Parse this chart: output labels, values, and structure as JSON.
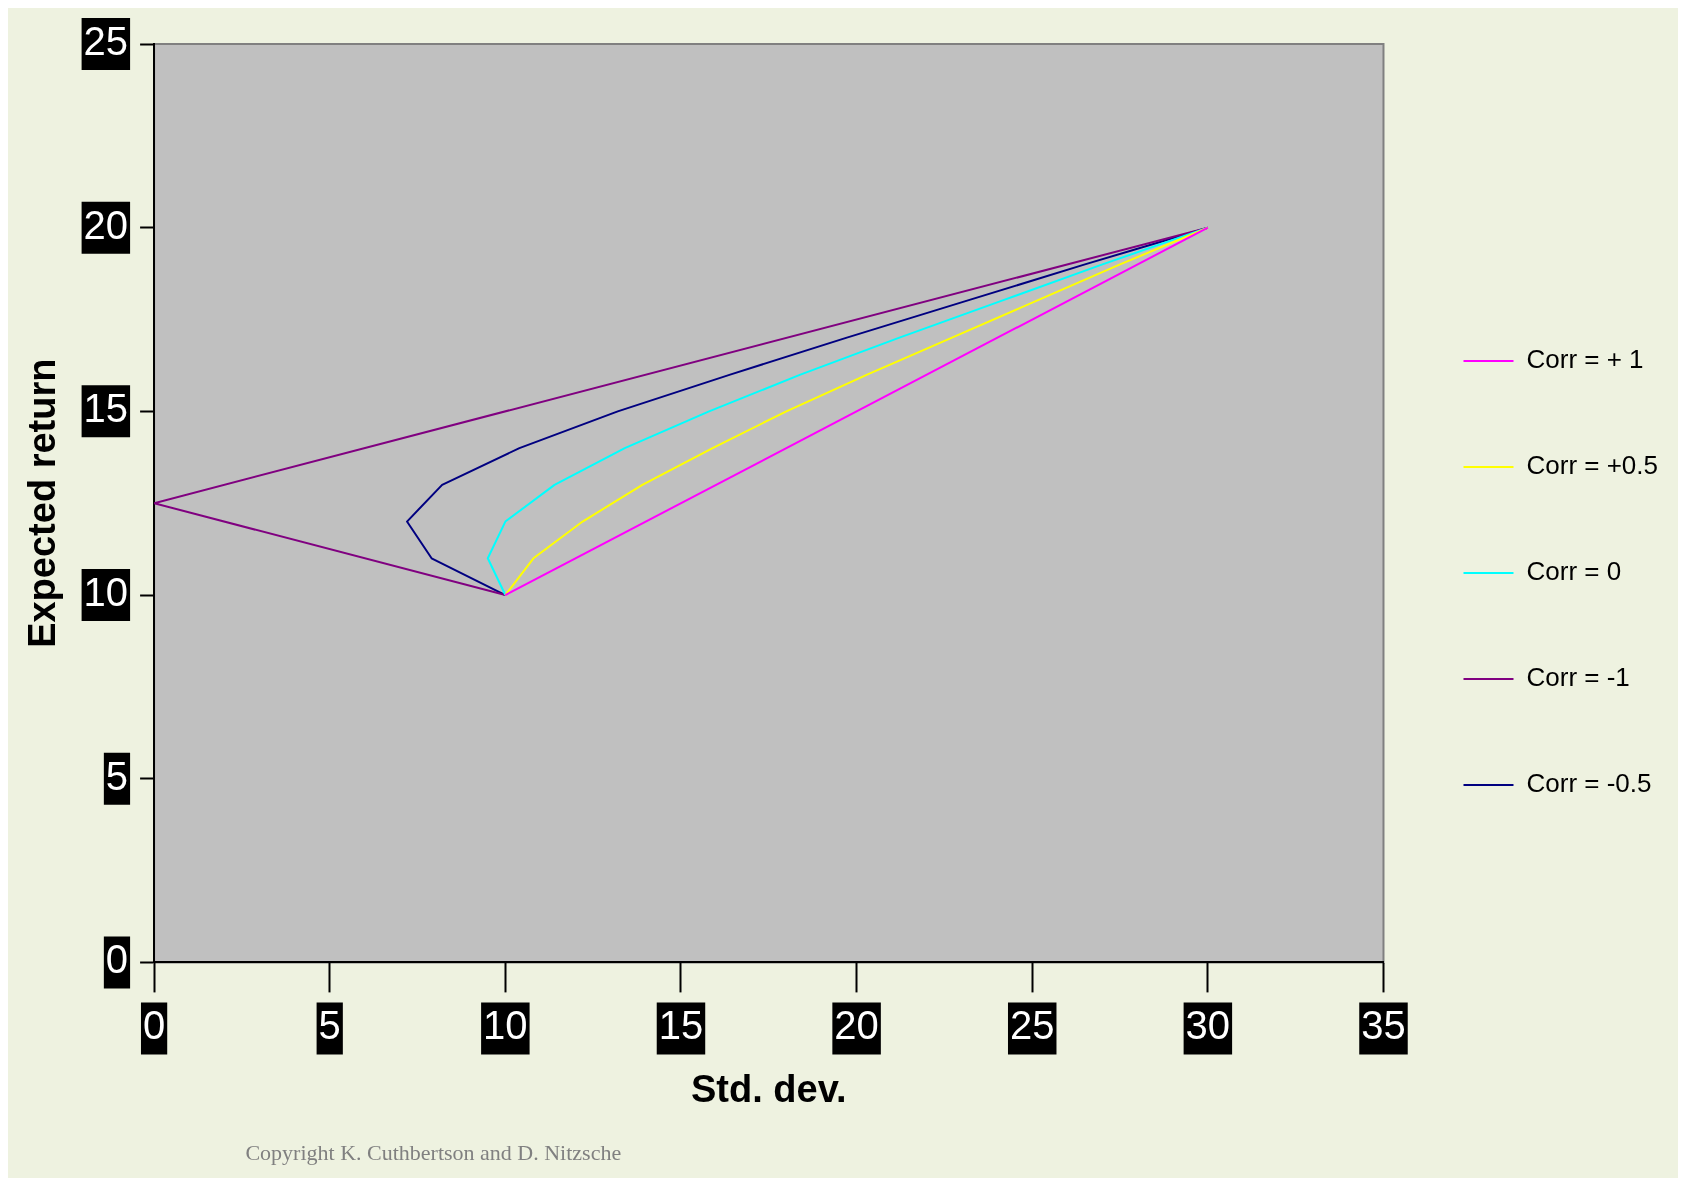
{
  "chart_data": {
    "type": "line",
    "xlabel": "Std. dev.",
    "ylabel": "Expected return",
    "xlim": [
      0,
      35
    ],
    "xticks": [
      0,
      5,
      10,
      15,
      20,
      25,
      30,
      35
    ],
    "ylim": [
      0,
      25
    ],
    "yticks": [
      0,
      5,
      10,
      15,
      20,
      25
    ],
    "grid": false,
    "legend": "right",
    "marker": "none",
    "line_style": "solid",
    "annotations": [
      "Copyright K. Cuthbertson and D. Nitzsche"
    ],
    "series": [
      {
        "name": "Corr = + 1",
        "color": "#ff00ff",
        "x": [
          10,
          30
        ],
        "values": [
          10,
          20
        ]
      },
      {
        "name": "Corr = +0.5",
        "color": "#ffff00",
        "x": [
          10,
          10.8,
          12.2,
          13.9,
          15.9,
          18,
          20.3,
          22.7,
          25.1,
          27.5,
          30
        ],
        "values": [
          10,
          11,
          12,
          13,
          14,
          15,
          16,
          17,
          18,
          19,
          20
        ]
      },
      {
        "name": "Corr = 0",
        "color": "#00ffff",
        "x": [
          10,
          9.5,
          10,
          11.4,
          13.4,
          15.8,
          18.4,
          21.2,
          24.1,
          27,
          30
        ],
        "values": [
          10,
          11,
          12,
          13,
          14,
          15,
          16,
          17,
          18,
          19,
          20
        ]
      },
      {
        "name": "Corr = -1",
        "color": "#800080",
        "x": [
          10,
          0,
          30
        ],
        "values": [
          10,
          12.5,
          20
        ]
      },
      {
        "name": "Corr = -0.5",
        "color": "#000080",
        "x": [
          10,
          7.9,
          7.2,
          8.2,
          10.4,
          13.2,
          16.4,
          19.7,
          23.1,
          26.5,
          30
        ],
        "values": [
          10,
          11,
          12,
          13,
          14,
          15,
          16,
          17,
          18,
          19,
          20
        ]
      }
    ]
  }
}
